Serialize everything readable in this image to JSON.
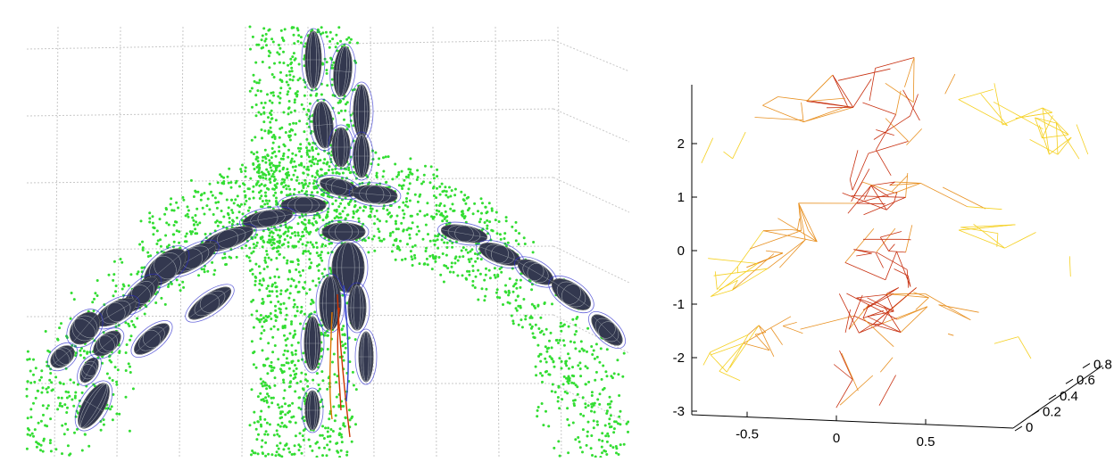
{
  "chart_data": [
    {
      "type": "scatter",
      "title": "",
      "xlabel": "",
      "ylabel": "",
      "grid": true,
      "point_color": "#33dd33",
      "ellipsoid_fill": "#33384f",
      "ellipsoid_mesh": "#9aa0a8",
      "ellipsoid_outline": "#2a2acc",
      "trajectory_colors": [
        "#cc3300",
        "#dd7700",
        "#3344cc"
      ]
    },
    {
      "type": "line",
      "title": "",
      "xlabel": "",
      "ylabel": "",
      "grid": false,
      "x_ticks": [
        "-0.5",
        "0",
        "0.5"
      ],
      "y_ticks": [
        "2",
        "1",
        "0",
        "-1",
        "-2",
        "-3"
      ],
      "z_ticks": [
        "0",
        "0.2",
        "0.4",
        "0.6",
        "0.8"
      ],
      "ylim": [
        -3,
        2.7
      ],
      "mesh_colors": [
        "#f5d020",
        "#e89020",
        "#c83010"
      ]
    }
  ]
}
